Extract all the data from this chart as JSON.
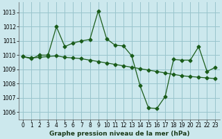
{
  "title": "Graphe pression niveau de la mer (hPa)",
  "background_color": "#cce8ed",
  "grid_color": "#99c4cc",
  "line_color": "#1a5c1a",
  "xlim": [
    -0.5,
    23.5
  ],
  "ylim": [
    1005.5,
    1013.7
  ],
  "xticks": [
    0,
    1,
    2,
    3,
    4,
    5,
    6,
    7,
    8,
    9,
    10,
    11,
    12,
    13,
    14,
    15,
    16,
    17,
    18,
    19,
    20,
    21,
    22,
    23
  ],
  "yticks": [
    1006,
    1007,
    1008,
    1009,
    1010,
    1011,
    1012,
    1013
  ],
  "series1_x": [
    0,
    1,
    2,
    3,
    4,
    5,
    6,
    7,
    8,
    9,
    10,
    11,
    12,
    13,
    14,
    15,
    16,
    17,
    18,
    19,
    20,
    21,
    22,
    23
  ],
  "series1_y": [
    1009.9,
    1009.75,
    1010.0,
    1010.0,
    1012.0,
    1010.6,
    1010.85,
    1011.0,
    1011.1,
    1013.1,
    1011.15,
    1010.7,
    1010.65,
    1009.95,
    1007.85,
    1006.3,
    1006.25,
    1007.1,
    1009.7,
    1009.65,
    1009.65,
    1010.6,
    1008.85,
    1009.15
  ],
  "series2_x": [
    0,
    1,
    2,
    3,
    4,
    5,
    6,
    7,
    8,
    9,
    10,
    11,
    12,
    13,
    14,
    15,
    16,
    17,
    18,
    19,
    20,
    21,
    22,
    23
  ],
  "series2_y": [
    1009.9,
    1009.8,
    1009.85,
    1009.9,
    1009.95,
    1009.85,
    1009.8,
    1009.75,
    1009.65,
    1009.55,
    1009.45,
    1009.35,
    1009.25,
    1009.15,
    1009.05,
    1008.95,
    1008.85,
    1008.75,
    1008.65,
    1008.55,
    1008.5,
    1008.45,
    1008.4,
    1008.35
  ],
  "marker": "D",
  "marker_size": 2.5,
  "line_width": 0.9,
  "tick_fontsize": 5.5,
  "label_fontsize": 6.5
}
